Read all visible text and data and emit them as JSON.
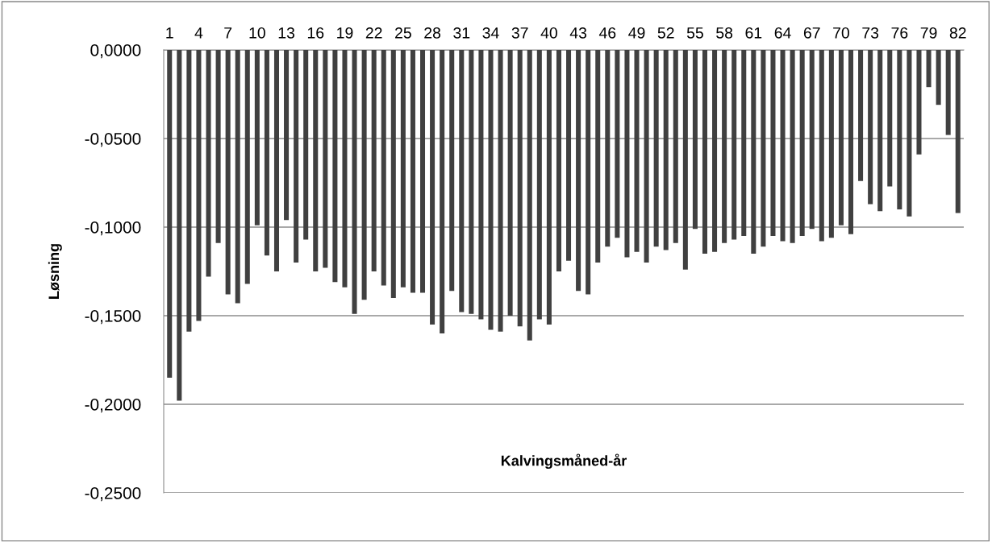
{
  "chart_data": {
    "type": "bar",
    "xlabel": "Kalvingsmåned-år",
    "ylabel": "Løsning",
    "categories": [
      "1",
      null,
      null,
      "4",
      null,
      null,
      "7",
      null,
      null,
      "10",
      null,
      null,
      "13",
      null,
      null,
      "16",
      null,
      null,
      "19",
      null,
      null,
      "22",
      null,
      null,
      "25",
      null,
      null,
      "28",
      null,
      null,
      "31",
      null,
      null,
      "34",
      null,
      null,
      "37",
      null,
      null,
      "40",
      null,
      null,
      "43",
      null,
      null,
      "46",
      null,
      null,
      "49",
      null,
      null,
      "52",
      null,
      null,
      "55",
      null,
      null,
      "58",
      null,
      null,
      "61",
      null,
      null,
      "64",
      null,
      null,
      "67",
      null,
      null,
      "70",
      null,
      null,
      "73",
      null,
      null,
      "76",
      null,
      null,
      "79",
      null,
      null,
      "82"
    ],
    "values": [
      -0.185,
      -0.198,
      -0.159,
      -0.153,
      -0.128,
      -0.109,
      -0.138,
      -0.143,
      -0.132,
      -0.099,
      -0.116,
      -0.125,
      -0.096,
      -0.12,
      -0.107,
      -0.125,
      -0.123,
      -0.131,
      -0.134,
      -0.149,
      -0.141,
      -0.125,
      -0.133,
      -0.14,
      -0.134,
      -0.137,
      -0.137,
      -0.155,
      -0.16,
      -0.136,
      -0.148,
      -0.149,
      -0.152,
      -0.158,
      -0.159,
      -0.15,
      -0.156,
      -0.164,
      -0.152,
      -0.155,
      -0.125,
      -0.119,
      -0.136,
      -0.138,
      -0.12,
      -0.111,
      -0.106,
      -0.117,
      -0.114,
      -0.12,
      -0.111,
      -0.113,
      -0.109,
      -0.124,
      -0.101,
      -0.115,
      -0.114,
      -0.109,
      -0.107,
      -0.105,
      -0.115,
      -0.111,
      -0.105,
      -0.108,
      -0.109,
      -0.105,
      -0.101,
      -0.108,
      -0.106,
      -0.099,
      -0.104,
      -0.074,
      -0.087,
      -0.091,
      -0.077,
      -0.09,
      -0.094,
      -0.059,
      -0.021,
      -0.031,
      -0.048,
      -0.092
    ],
    "color": "#404040",
    "ylim": [
      -0.25,
      0
    ],
    "yticks": [
      {
        "value": 0,
        "label": "0,0000"
      },
      {
        "value": -0.05,
        "label": "-0,0500"
      },
      {
        "value": -0.1,
        "label": "-0,1000"
      },
      {
        "value": -0.15,
        "label": "-0,1500"
      },
      {
        "value": -0.2,
        "label": "-0,2000"
      },
      {
        "value": -0.25,
        "label": "-0,2500"
      }
    ],
    "grid": "y"
  }
}
